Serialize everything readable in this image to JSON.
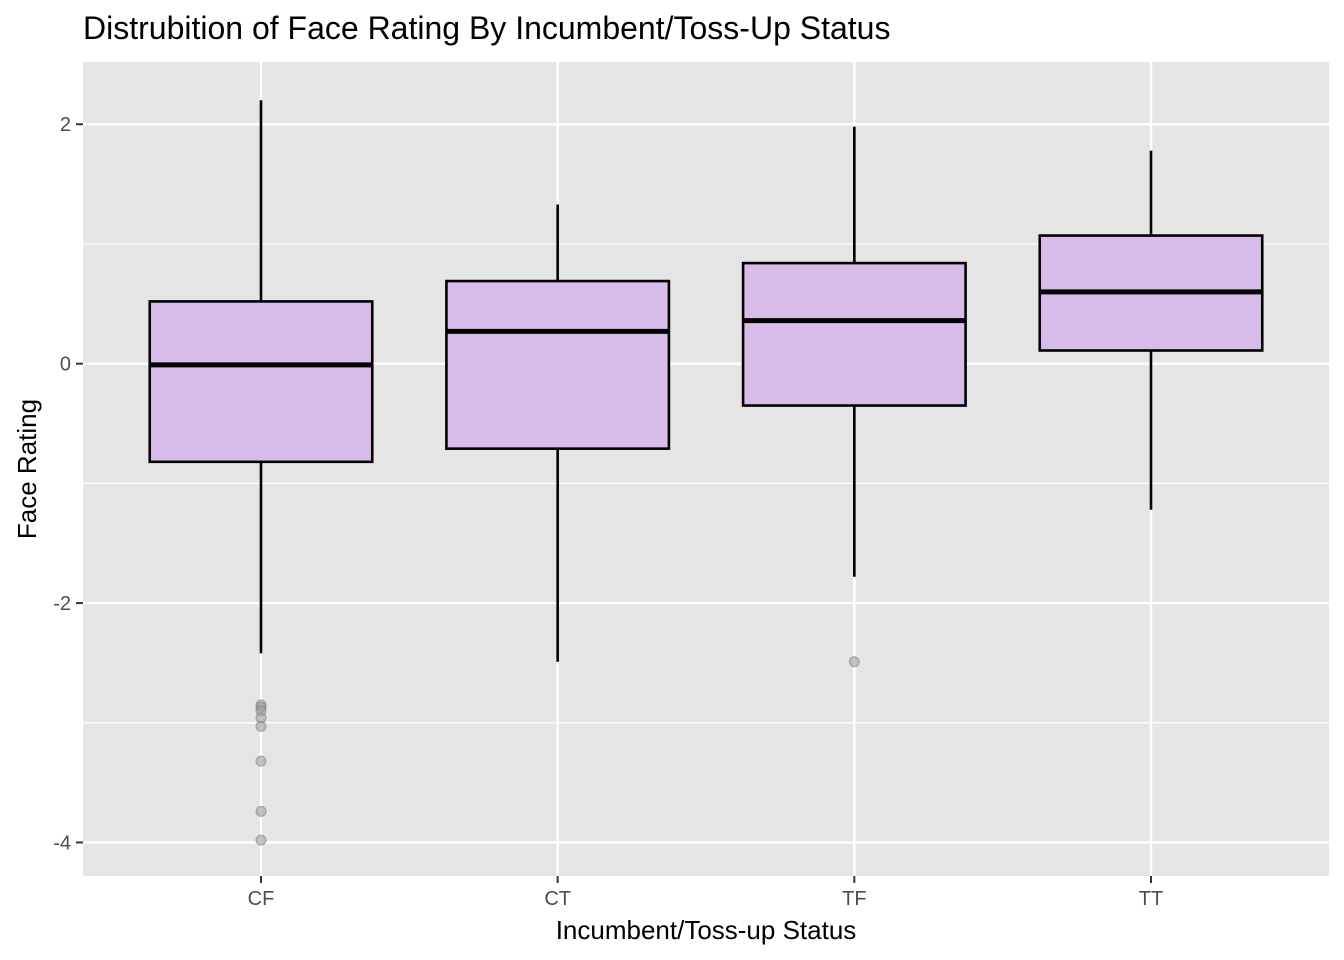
{
  "chart_data": {
    "type": "boxplot",
    "title": "Distrubition of Face Rating By Incumbent/Toss-Up Status",
    "xlabel": "Incumbent/Toss-up Status",
    "ylabel": "Face Rating",
    "categories": [
      "CF",
      "CT",
      "TF",
      "TT"
    ],
    "ylim": [
      -4.28,
      2.52
    ],
    "y_ticks": [
      -4,
      -2,
      0,
      2
    ],
    "y_tick_labels": [
      "-4",
      "-2",
      "0",
      "2"
    ],
    "grid": true,
    "legend": "none",
    "colors": {
      "panel": "#E5E5E5",
      "grid": "#FFFFFF",
      "box_fill": "#D6B8EA",
      "box_stroke": "#000000",
      "outlier": "#9E9E9E"
    },
    "boxes": [
      {
        "category": "CF",
        "whisker_low": -2.42,
        "q1": -0.82,
        "median": -0.01,
        "q3": 0.52,
        "whisker_high": 2.2,
        "outliers": [
          -2.85,
          -2.87,
          -2.9,
          -2.96,
          -3.03,
          -3.32,
          -3.74,
          -3.98
        ]
      },
      {
        "category": "CT",
        "whisker_low": -2.49,
        "q1": -0.71,
        "median": 0.27,
        "q3": 0.69,
        "whisker_high": 1.33,
        "outliers": []
      },
      {
        "category": "TF",
        "whisker_low": -1.78,
        "q1": -0.35,
        "median": 0.36,
        "q3": 0.84,
        "whisker_high": 1.98,
        "outliers": [
          -2.49
        ]
      },
      {
        "category": "TT",
        "whisker_low": -1.22,
        "q1": 0.11,
        "median": 0.6,
        "q3": 1.07,
        "whisker_high": 1.78,
        "outliers": []
      }
    ]
  }
}
